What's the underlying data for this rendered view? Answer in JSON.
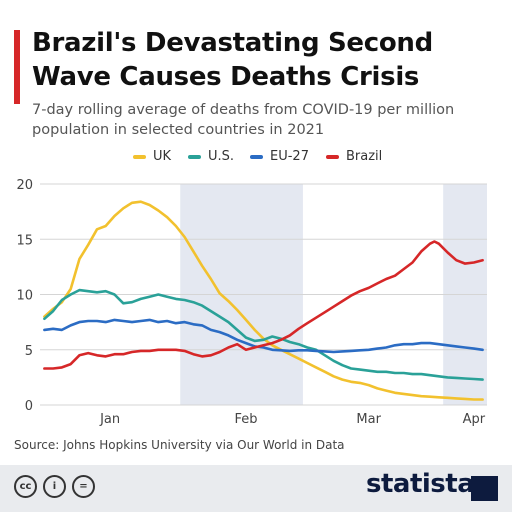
{
  "header": {
    "title": "Brazil's Devastating Second Wave Causes Deaths Crisis",
    "subtitle": "7-day rolling average of deaths from COVID-19 per million population in selected countries in 2021"
  },
  "colors": {
    "title_accent": "#d62728",
    "band": "#e4e8f1",
    "grid": "#d5d5d5",
    "brand": "#0d1b3e"
  },
  "chart_data": {
    "type": "line",
    "title": "Brazil's Devastating Second Wave Causes Deaths Crisis",
    "subtitle": "7-day rolling average of deaths from COVID-19 per million population in selected countries in 2021",
    "x_unit": "day of year 2021",
    "xlim": [
      -1,
      101
    ],
    "ylim": [
      0,
      20
    ],
    "yticks": [
      0,
      5,
      10,
      15,
      20
    ],
    "xticks": [
      {
        "label": "Jan",
        "x": 15
      },
      {
        "label": "Feb",
        "x": 46
      },
      {
        "label": "Mar",
        "x": 74
      },
      {
        "label": "Apr",
        "x": 98
      }
    ],
    "shaded_bands": [
      [
        31,
        59
      ],
      [
        91,
        101
      ]
    ],
    "grid": true,
    "legend_position": "top-center",
    "series": [
      {
        "name": "UK",
        "color": "#f2c12e",
        "points": [
          [
            0,
            8
          ],
          [
            2,
            8.7
          ],
          [
            4,
            9.3
          ],
          [
            6,
            10.5
          ],
          [
            8,
            13.2
          ],
          [
            10,
            14.5
          ],
          [
            12,
            15.9
          ],
          [
            14,
            16.2
          ],
          [
            16,
            17.1
          ],
          [
            18,
            17.8
          ],
          [
            20,
            18.3
          ],
          [
            22,
            18.4
          ],
          [
            24,
            18.1
          ],
          [
            26,
            17.6
          ],
          [
            28,
            17.0
          ],
          [
            30,
            16.2
          ],
          [
            32,
            15.2
          ],
          [
            34,
            13.9
          ],
          [
            36,
            12.6
          ],
          [
            38,
            11.4
          ],
          [
            40,
            10.1
          ],
          [
            42,
            9.4
          ],
          [
            44,
            8.6
          ],
          [
            46,
            7.7
          ],
          [
            48,
            6.8
          ],
          [
            50,
            6.0
          ],
          [
            52,
            5.4
          ],
          [
            54,
            5.0
          ],
          [
            56,
            4.6
          ],
          [
            58,
            4.2
          ],
          [
            60,
            3.8
          ],
          [
            62,
            3.4
          ],
          [
            64,
            3.0
          ],
          [
            66,
            2.6
          ],
          [
            68,
            2.3
          ],
          [
            70,
            2.1
          ],
          [
            72,
            2.0
          ],
          [
            74,
            1.8
          ],
          [
            76,
            1.5
          ],
          [
            78,
            1.3
          ],
          [
            80,
            1.1
          ],
          [
            82,
            1.0
          ],
          [
            84,
            0.9
          ],
          [
            86,
            0.8
          ],
          [
            88,
            0.75
          ],
          [
            90,
            0.7
          ],
          [
            92,
            0.65
          ],
          [
            94,
            0.6
          ],
          [
            96,
            0.55
          ],
          [
            98,
            0.5
          ],
          [
            100,
            0.5
          ]
        ]
      },
      {
        "name": "U.S.",
        "color": "#2aa198",
        "points": [
          [
            0,
            7.8
          ],
          [
            2,
            8.5
          ],
          [
            4,
            9.5
          ],
          [
            6,
            10.0
          ],
          [
            8,
            10.4
          ],
          [
            10,
            10.3
          ],
          [
            12,
            10.2
          ],
          [
            14,
            10.3
          ],
          [
            16,
            10.0
          ],
          [
            18,
            9.2
          ],
          [
            20,
            9.3
          ],
          [
            22,
            9.6
          ],
          [
            24,
            9.8
          ],
          [
            26,
            10.0
          ],
          [
            28,
            9.8
          ],
          [
            30,
            9.6
          ],
          [
            32,
            9.5
          ],
          [
            34,
            9.3
          ],
          [
            36,
            9.0
          ],
          [
            38,
            8.5
          ],
          [
            40,
            8.0
          ],
          [
            42,
            7.5
          ],
          [
            44,
            6.8
          ],
          [
            46,
            6.1
          ],
          [
            48,
            5.8
          ],
          [
            50,
            5.9
          ],
          [
            52,
            6.2
          ],
          [
            54,
            6.0
          ],
          [
            56,
            5.7
          ],
          [
            58,
            5.5
          ],
          [
            60,
            5.2
          ],
          [
            62,
            5.0
          ],
          [
            64,
            4.5
          ],
          [
            66,
            4.0
          ],
          [
            68,
            3.6
          ],
          [
            70,
            3.3
          ],
          [
            72,
            3.2
          ],
          [
            74,
            3.1
          ],
          [
            76,
            3.0
          ],
          [
            78,
            3.0
          ],
          [
            80,
            2.9
          ],
          [
            82,
            2.9
          ],
          [
            84,
            2.8
          ],
          [
            86,
            2.8
          ],
          [
            88,
            2.7
          ],
          [
            90,
            2.6
          ],
          [
            92,
            2.5
          ],
          [
            94,
            2.45
          ],
          [
            96,
            2.4
          ],
          [
            98,
            2.35
          ],
          [
            100,
            2.3
          ]
        ]
      },
      {
        "name": "EU-27",
        "color": "#2b6cc4",
        "points": [
          [
            0,
            6.8
          ],
          [
            2,
            6.9
          ],
          [
            4,
            6.8
          ],
          [
            6,
            7.2
          ],
          [
            8,
            7.5
          ],
          [
            10,
            7.6
          ],
          [
            12,
            7.6
          ],
          [
            14,
            7.5
          ],
          [
            16,
            7.7
          ],
          [
            18,
            7.6
          ],
          [
            20,
            7.5
          ],
          [
            22,
            7.6
          ],
          [
            24,
            7.7
          ],
          [
            26,
            7.5
          ],
          [
            28,
            7.6
          ],
          [
            30,
            7.4
          ],
          [
            32,
            7.5
          ],
          [
            34,
            7.3
          ],
          [
            36,
            7.2
          ],
          [
            38,
            6.8
          ],
          [
            40,
            6.6
          ],
          [
            42,
            6.3
          ],
          [
            44,
            5.9
          ],
          [
            46,
            5.6
          ],
          [
            48,
            5.3
          ],
          [
            50,
            5.2
          ],
          [
            52,
            5.0
          ],
          [
            54,
            4.95
          ],
          [
            56,
            4.9
          ],
          [
            58,
            4.95
          ],
          [
            60,
            4.95
          ],
          [
            62,
            4.9
          ],
          [
            64,
            4.85
          ],
          [
            66,
            4.8
          ],
          [
            68,
            4.85
          ],
          [
            70,
            4.9
          ],
          [
            72,
            4.95
          ],
          [
            74,
            5.0
          ],
          [
            76,
            5.1
          ],
          [
            78,
            5.2
          ],
          [
            80,
            5.4
          ],
          [
            82,
            5.5
          ],
          [
            84,
            5.5
          ],
          [
            86,
            5.6
          ],
          [
            88,
            5.6
          ],
          [
            90,
            5.5
          ],
          [
            92,
            5.4
          ],
          [
            94,
            5.3
          ],
          [
            96,
            5.2
          ],
          [
            98,
            5.1
          ],
          [
            100,
            5.0
          ]
        ]
      },
      {
        "name": "Brazil",
        "color": "#d62728",
        "points": [
          [
            0,
            3.3
          ],
          [
            2,
            3.3
          ],
          [
            4,
            3.4
          ],
          [
            6,
            3.7
          ],
          [
            8,
            4.5
          ],
          [
            10,
            4.7
          ],
          [
            12,
            4.5
          ],
          [
            14,
            4.4
          ],
          [
            16,
            4.6
          ],
          [
            18,
            4.6
          ],
          [
            20,
            4.8
          ],
          [
            22,
            4.9
          ],
          [
            24,
            4.9
          ],
          [
            26,
            5.0
          ],
          [
            28,
            5.0
          ],
          [
            30,
            5.0
          ],
          [
            32,
            4.9
          ],
          [
            34,
            4.6
          ],
          [
            36,
            4.4
          ],
          [
            38,
            4.5
          ],
          [
            40,
            4.8
          ],
          [
            42,
            5.2
          ],
          [
            44,
            5.5
          ],
          [
            46,
            5.0
          ],
          [
            48,
            5.2
          ],
          [
            50,
            5.4
          ],
          [
            52,
            5.6
          ],
          [
            54,
            5.9
          ],
          [
            56,
            6.3
          ],
          [
            58,
            6.9
          ],
          [
            60,
            7.4
          ],
          [
            62,
            7.9
          ],
          [
            64,
            8.4
          ],
          [
            66,
            8.9
          ],
          [
            68,
            9.4
          ],
          [
            70,
            9.9
          ],
          [
            72,
            10.3
          ],
          [
            74,
            10.6
          ],
          [
            76,
            11.0
          ],
          [
            78,
            11.4
          ],
          [
            80,
            11.7
          ],
          [
            82,
            12.3
          ],
          [
            84,
            12.9
          ],
          [
            86,
            13.9
          ],
          [
            88,
            14.6
          ],
          [
            89,
            14.8
          ],
          [
            90,
            14.6
          ],
          [
            92,
            13.8
          ],
          [
            94,
            13.1
          ],
          [
            96,
            12.8
          ],
          [
            98,
            12.9
          ],
          [
            100,
            13.1
          ]
        ]
      }
    ]
  },
  "source": {
    "text": "Source: Johns Hopkins University via Our World in Data"
  },
  "footer": {
    "license_icons": [
      "creative-commons-icon",
      "attribution-icon",
      "no-derivatives-icon"
    ],
    "license_glyphs": [
      "cc",
      "i",
      "="
    ],
    "brand": "statista"
  }
}
